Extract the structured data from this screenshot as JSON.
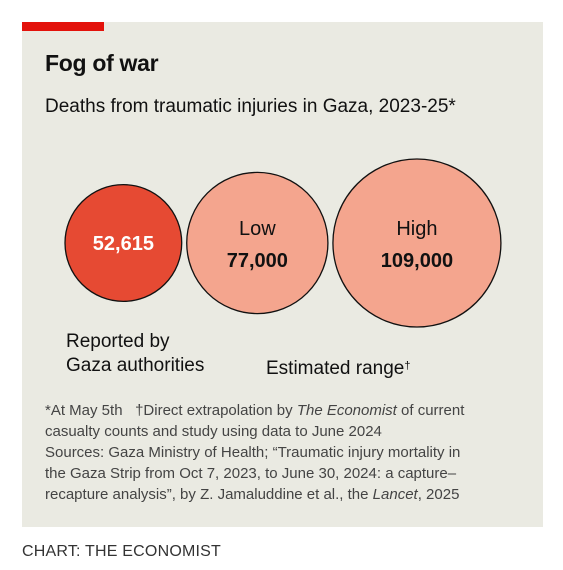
{
  "title": "Fog of war",
  "subtitle": "Deaths from traumatic injuries in Gaza, 2023-25*",
  "colors": {
    "accent": "#e3120b",
    "background": "#eaeae2",
    "reported_fill": "#e64a33",
    "estimate_fill": "#f4a58e",
    "outline": "#111111"
  },
  "chart_data": {
    "type": "bubble",
    "categories": [
      "Reported",
      "Low",
      "High"
    ],
    "values": [
      52615,
      77000,
      109000
    ],
    "bubbles": [
      {
        "label": "",
        "value_text": "52,615",
        "value": 52615,
        "group": "reported"
      },
      {
        "label": "Low",
        "value_text": "77,000",
        "value": 77000,
        "group": "estimate"
      },
      {
        "label": "High",
        "value_text": "109,000",
        "value": 109000,
        "group": "estimate"
      }
    ],
    "group_labels": {
      "reported_line1": "Reported by",
      "reported_line2": "Gaza authorities",
      "estimate": "Estimated range",
      "estimate_mark": "†"
    }
  },
  "notes": {
    "line1_a": "*At May 5th",
    "line1_b": "†Direct extrapolation by ",
    "line1_c": "The Economist",
    "line1_d": " of current",
    "line2": "casualty counts and study using data to June 2024",
    "line3": "Sources: Gaza Ministry of Health; “Traumatic injury mortality in",
    "line4": "the Gaza Strip from Oct 7, 2023, to June 30, 2024: a capture–",
    "line5_a": "recapture analysis”, by Z. Jamaluddine et al., the ",
    "line5_b": "Lancet",
    "line5_c": ", 2025"
  },
  "credit": "CHART: THE ECONOMIST"
}
